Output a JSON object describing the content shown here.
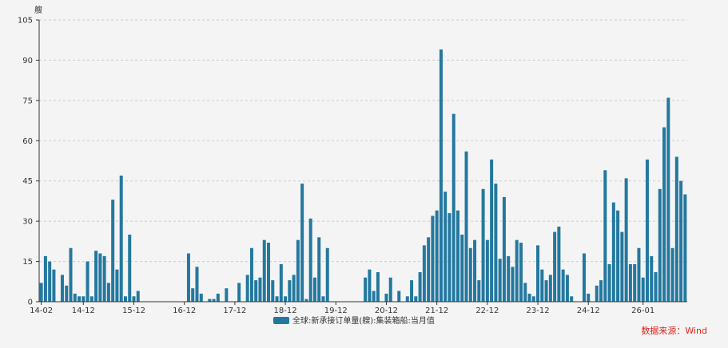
{
  "colors": {
    "bar": "#23789f",
    "axis": "#333333",
    "grid": "#cccccc",
    "source": "#e0201b",
    "background": "#f4f4f4"
  },
  "unit_label": "艘",
  "source_text": "数据来源：Wind",
  "chart_data": {
    "type": "bar",
    "title": "",
    "ylabel": "艘",
    "xlabel": "",
    "ylim": [
      0,
      105
    ],
    "yticks": [
      0,
      15,
      30,
      45,
      60,
      75,
      90,
      105
    ],
    "grid": true,
    "legend_position": "bottom",
    "x_tick_labels": [
      "14-02",
      "14-12",
      "15-12",
      "16-12",
      "17-12",
      "18-12",
      "19-12",
      "20-12",
      "21-12",
      "22-12",
      "23-12",
      "24-12",
      "26-01"
    ],
    "start_month": "2014-02",
    "series": [
      {
        "name": "全球:新承接订单量(艘):集装箱船:当月值",
        "values": [
          7,
          17,
          15,
          12,
          null,
          10,
          6,
          20,
          3,
          2,
          2,
          15,
          2,
          19,
          18,
          17,
          7,
          38,
          12,
          47,
          2,
          25,
          2,
          4,
          null,
          null,
          null,
          null,
          null,
          null,
          null,
          null,
          null,
          null,
          null,
          18,
          5,
          13,
          3,
          null,
          1,
          1,
          3,
          null,
          5,
          null,
          null,
          7,
          null,
          10,
          20,
          8,
          9,
          23,
          22,
          8,
          2,
          14,
          2,
          8,
          10,
          23,
          44,
          1,
          31,
          9,
          24,
          2,
          20,
          null,
          null,
          null,
          null,
          null,
          null,
          null,
          null,
          9,
          12,
          4,
          11,
          null,
          3,
          9,
          null,
          4,
          null,
          2,
          8,
          2,
          11,
          21,
          24,
          32,
          34,
          94,
          41,
          33,
          70,
          34,
          25,
          56,
          20,
          23,
          8,
          42,
          23,
          53,
          44,
          16,
          39,
          17,
          13,
          23,
          22,
          7,
          3,
          2,
          21,
          12,
          8,
          10,
          26,
          28,
          12,
          10,
          2,
          null,
          null,
          18,
          3,
          null,
          6,
          8,
          49,
          14,
          37,
          34,
          26,
          46,
          14,
          14,
          20,
          9,
          53,
          17,
          11,
          42,
          65,
          76,
          20,
          54,
          45,
          40
        ]
      }
    ]
  }
}
